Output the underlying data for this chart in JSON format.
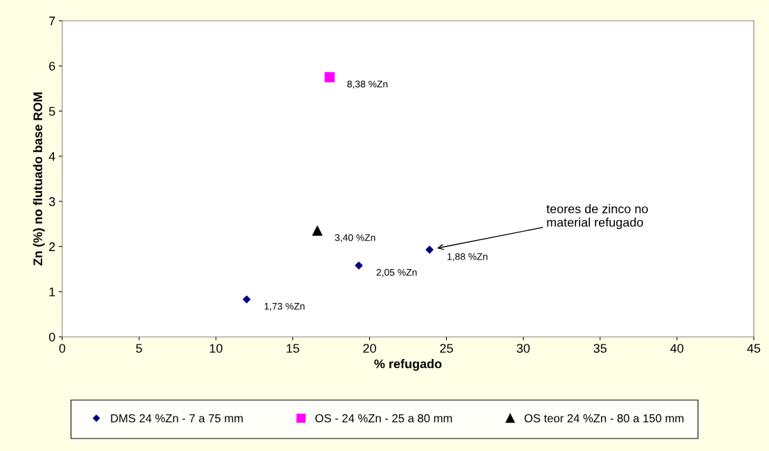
{
  "chart_data": {
    "type": "scatter",
    "xlabel": "% refugado",
    "ylabel": "Zn (%) no flutuado base ROM",
    "xlim": [
      0,
      45
    ],
    "xticks": [
      0,
      5,
      10,
      15,
      20,
      25,
      30,
      35,
      40,
      45
    ],
    "ylim": [
      0,
      7
    ],
    "yticks": [
      0,
      1,
      2,
      3,
      4,
      5,
      6,
      7
    ],
    "grid": false,
    "legend": "bottom",
    "series": [
      {
        "name": "DMS 24 %Zn - 7 a 75 mm",
        "color": "#000080",
        "marker": "diamond",
        "x": [
          12.0,
          19.3,
          23.9
        ],
        "values": [
          0.83,
          1.58,
          1.93
        ]
      },
      {
        "name": "OS - 24 %Zn - 25 a 80 mm",
        "color": "#ff00ff",
        "marker": "square",
        "x": [
          17.4
        ],
        "values": [
          5.75
        ]
      },
      {
        "name": "OS teor 24 %Zn - 80 a 150 mm",
        "color": "#000000",
        "marker": "triangle",
        "x": [
          16.6
        ],
        "values": [
          2.35
        ]
      }
    ],
    "annotations": [
      {
        "text": "1,73 %Zn",
        "x": 12.0,
        "y": 0.83
      },
      {
        "text": "2,05 %Zn",
        "x": 19.3,
        "y": 1.58
      },
      {
        "text": "1,88 %Zn",
        "x": 23.9,
        "y": 1.93
      },
      {
        "text": "8,38 %Zn",
        "x": 17.4,
        "y": 5.75
      },
      {
        "text": "3,40 %Zn",
        "x": 16.6,
        "y": 2.35
      },
      "teores de zinco no\nmaterial refugado"
    ]
  }
}
